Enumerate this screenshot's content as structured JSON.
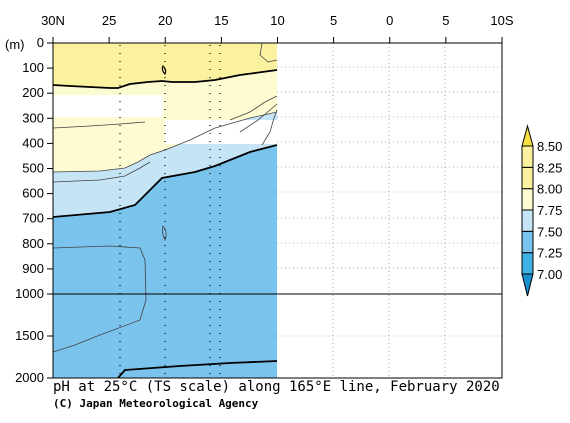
{
  "chart_data": {
    "type": "contour",
    "title": "pH at 25°C (TS scale) along 165°E line, February 2020",
    "credit": "(C) Japan Meteorological Agency",
    "ylabel": "(m)",
    "x_ticks": [
      "30N",
      "25",
      "20",
      "15",
      "10",
      "5",
      "0",
      "5",
      "10S"
    ],
    "y_ticks_upper": [
      "0",
      "100",
      "200",
      "300",
      "400",
      "500",
      "600",
      "700",
      "800",
      "900",
      "1000"
    ],
    "y_ticks_lower": [
      "1500",
      "2000"
    ],
    "x_range": [
      "30N",
      "10S"
    ],
    "y_range": [
      0,
      2000
    ],
    "y_axis_break_at": 1000,
    "data_extent": {
      "lat_north": 30,
      "lat_south": 10
    },
    "colorbar": {
      "levels": [
        "7.00",
        "7.25",
        "7.50",
        "7.75",
        "8.00",
        "8.25",
        "8.50"
      ],
      "colors": [
        "#1a8fcf",
        "#3fb1e3",
        "#79c3ec",
        "#c5e4f6",
        "#fdfbd2",
        "#fbf2a0",
        "#f6de43"
      ]
    }
  }
}
